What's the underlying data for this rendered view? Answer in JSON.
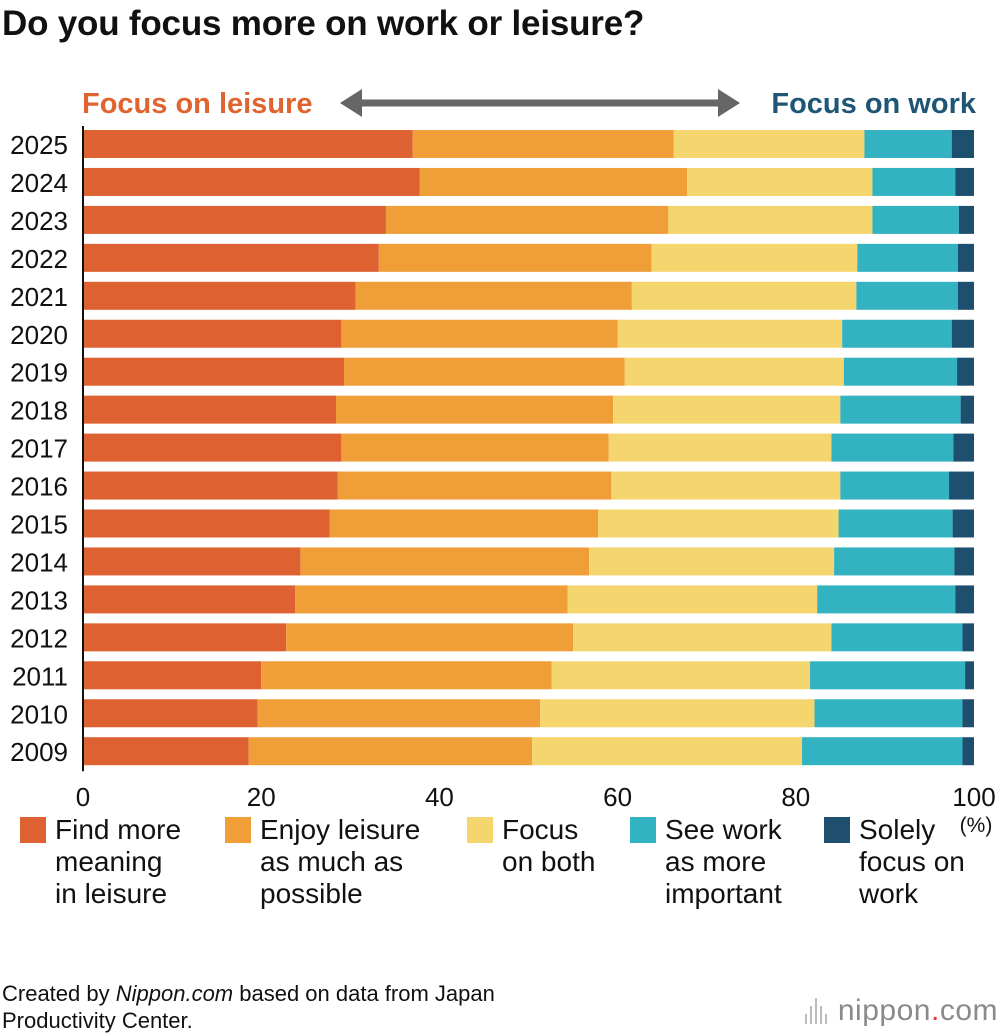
{
  "title": "Do you focus more on work or leisure?",
  "direction_labels": {
    "left": "Focus on leisure",
    "right": "Focus on work"
  },
  "colors": {
    "find_more_meaning": "#de6131",
    "enjoy_leisure": "#f09e38",
    "focus_both": "#f5d56e",
    "work_more_important": "#33b3c2",
    "solely_work": "#1f4f6e",
    "left_label": "#e0642f",
    "right_label": "#1f5675",
    "arrow": "#666666"
  },
  "footer": {
    "prefix": "Created by ",
    "site": "Nippon.com",
    "suffix": " based on data from Japan",
    "line2": "Productivity Center."
  },
  "logo": {
    "name": "nippon",
    "dot": ".",
    "tld": "com"
  },
  "chart_data": {
    "type": "bar",
    "orientation": "horizontal",
    "stacked": true,
    "title": "Do you focus more on work or leisure?",
    "categories": [
      "2025",
      "2024",
      "2023",
      "2022",
      "2021",
      "2020",
      "2019",
      "2018",
      "2017",
      "2016",
      "2015",
      "2014",
      "2013",
      "2012",
      "2011",
      "2010",
      "2009"
    ],
    "xlim": [
      0,
      100
    ],
    "xticks": [
      0,
      20,
      40,
      60,
      80,
      100
    ],
    "xunit": "(%)",
    "series": [
      {
        "name": "Find more meaning in leisure",
        "legend_label": "Find more\nmeaning\nin leisure",
        "values": [
          37.0,
          37.8,
          34.0,
          33.2,
          30.6,
          29.0,
          29.3,
          28.4,
          29.0,
          28.6,
          27.7,
          24.4,
          23.8,
          22.8,
          20.0,
          19.6,
          18.6
        ]
      },
      {
        "name": "Enjoy leisure as much as possible",
        "legend_label": "Enjoy leisure\nas much as\npossible",
        "values": [
          29.3,
          30.0,
          31.7,
          30.6,
          31.0,
          31.0,
          31.5,
          31.1,
          30.0,
          30.7,
          30.1,
          32.4,
          30.6,
          32.2,
          32.6,
          31.7,
          31.8
        ]
      },
      {
        "name": "Focus on both",
        "legend_label": "Focus\non both",
        "values": [
          21.4,
          20.8,
          22.9,
          23.1,
          25.2,
          25.2,
          24.6,
          25.5,
          25.0,
          25.7,
          27.0,
          27.5,
          28.0,
          29.0,
          29.0,
          30.8,
          30.3
        ]
      },
      {
        "name": "See work as more important",
        "legend_label": "See work\nas more\nimportant",
        "values": [
          9.8,
          9.3,
          9.7,
          11.3,
          11.4,
          12.3,
          12.7,
          13.5,
          13.7,
          12.2,
          12.8,
          13.5,
          15.5,
          14.7,
          17.4,
          16.6,
          18.0
        ]
      },
      {
        "name": "Solely focus on work",
        "legend_label": "Solely\nfocus on\nwork",
        "values": [
          2.5,
          2.1,
          1.7,
          1.8,
          1.8,
          2.5,
          1.9,
          1.5,
          2.3,
          2.8,
          2.4,
          2.2,
          2.1,
          1.3,
          1.0,
          1.3,
          1.3
        ]
      }
    ],
    "legend_position": "bottom"
  }
}
